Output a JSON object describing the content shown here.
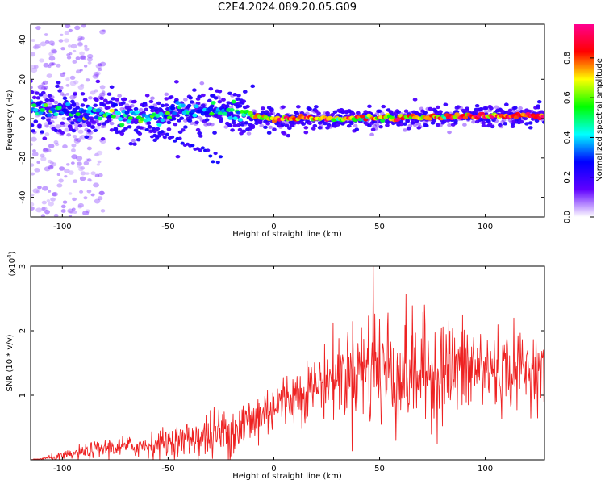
{
  "title": "C2E4.2024.089.20.05.G09",
  "chart_data": [
    {
      "type": "heatmap",
      "xlabel": "Height of straight line (km)",
      "ylabel": "Frequency (Hz)",
      "xlim": [
        -115,
        128
      ],
      "ylim": [
        -50,
        48
      ],
      "xticks": [
        -100,
        -50,
        0,
        50,
        100
      ],
      "xtick_labels": [
        "-100",
        "-50",
        "0",
        "50",
        "100"
      ],
      "yticks": [
        -40,
        -20,
        0,
        20,
        40
      ],
      "ytick_labels": [
        "-40",
        "-20",
        "0",
        "20",
        "40"
      ],
      "grid": false,
      "colorbar": {
        "label": "Normalized spectral amplitude",
        "range": [
          0,
          0.97
        ],
        "ticks": [
          0.0,
          0.2,
          0.4,
          0.6,
          0.8
        ],
        "tick_labels": [
          "0.0",
          "0.2",
          "0.4",
          "0.6",
          "0.8"
        ],
        "colors": [
          "#ffffff",
          "#6000ff",
          "#0000ff",
          "#00ffff",
          "#00ff00",
          "#ffff00",
          "#ff0000",
          "#ff0090"
        ]
      },
      "ridge": {
        "x": [
          -115,
          -100,
          -80,
          -60,
          -40,
          -20,
          -10,
          0,
          20,
          40,
          60,
          80,
          100,
          128
        ],
        "center": [
          6,
          3,
          2,
          1,
          4,
          3,
          1,
          0,
          0,
          0,
          0.5,
          1,
          1.5,
          1.5
        ],
        "amplitude": [
          0.4,
          0.35,
          0.4,
          0.45,
          0.35,
          0.4,
          0.55,
          0.75,
          0.75,
          0.65,
          0.7,
          0.8,
          0.82,
          0.85
        ]
      }
    },
    {
      "type": "line",
      "xlabel": "Height of straight line (km)",
      "ylabel": "SNR (10 * v/v)",
      "y_multiplier_label": "(x10",
      "y_multiplier_exp": "4",
      "xlim": [
        -115,
        128
      ],
      "ylim": [
        0,
        3
      ],
      "xticks": [
        -100,
        -50,
        0,
        50,
        100
      ],
      "xtick_labels": [
        "-100",
        "-50",
        "0",
        "50",
        "100"
      ],
      "yticks": [
        1,
        2,
        3
      ],
      "ytick_labels": [
        "1",
        "2",
        "3"
      ],
      "grid": false,
      "series": [
        {
          "color": "#ee2222",
          "envelope_x": [
            -115,
            -100,
            -90,
            -80,
            -70,
            -60,
            -50,
            -40,
            -30,
            -20,
            -10,
            0,
            10,
            20,
            30,
            40,
            48,
            55,
            60,
            70,
            80,
            90,
            100,
            110,
            120,
            128
          ],
          "envelope_mean": [
            0.0,
            0.05,
            0.12,
            0.18,
            0.2,
            0.22,
            0.28,
            0.32,
            0.38,
            0.45,
            0.6,
            0.85,
            1.0,
            1.15,
            1.3,
            1.4,
            1.45,
            1.35,
            1.35,
            1.35,
            1.4,
            1.4,
            1.4,
            1.4,
            1.4,
            1.45
          ],
          "envelope_spread": [
            0.0,
            0.05,
            0.08,
            0.1,
            0.12,
            0.13,
            0.16,
            0.2,
            0.28,
            0.32,
            0.35,
            0.3,
            0.3,
            0.35,
            0.45,
            0.55,
            0.75,
            0.75,
            0.65,
            0.6,
            0.6,
            0.55,
            0.5,
            0.45,
            0.4,
            0.35
          ],
          "peak": {
            "x": 47,
            "y": 3.0
          }
        }
      ]
    }
  ]
}
